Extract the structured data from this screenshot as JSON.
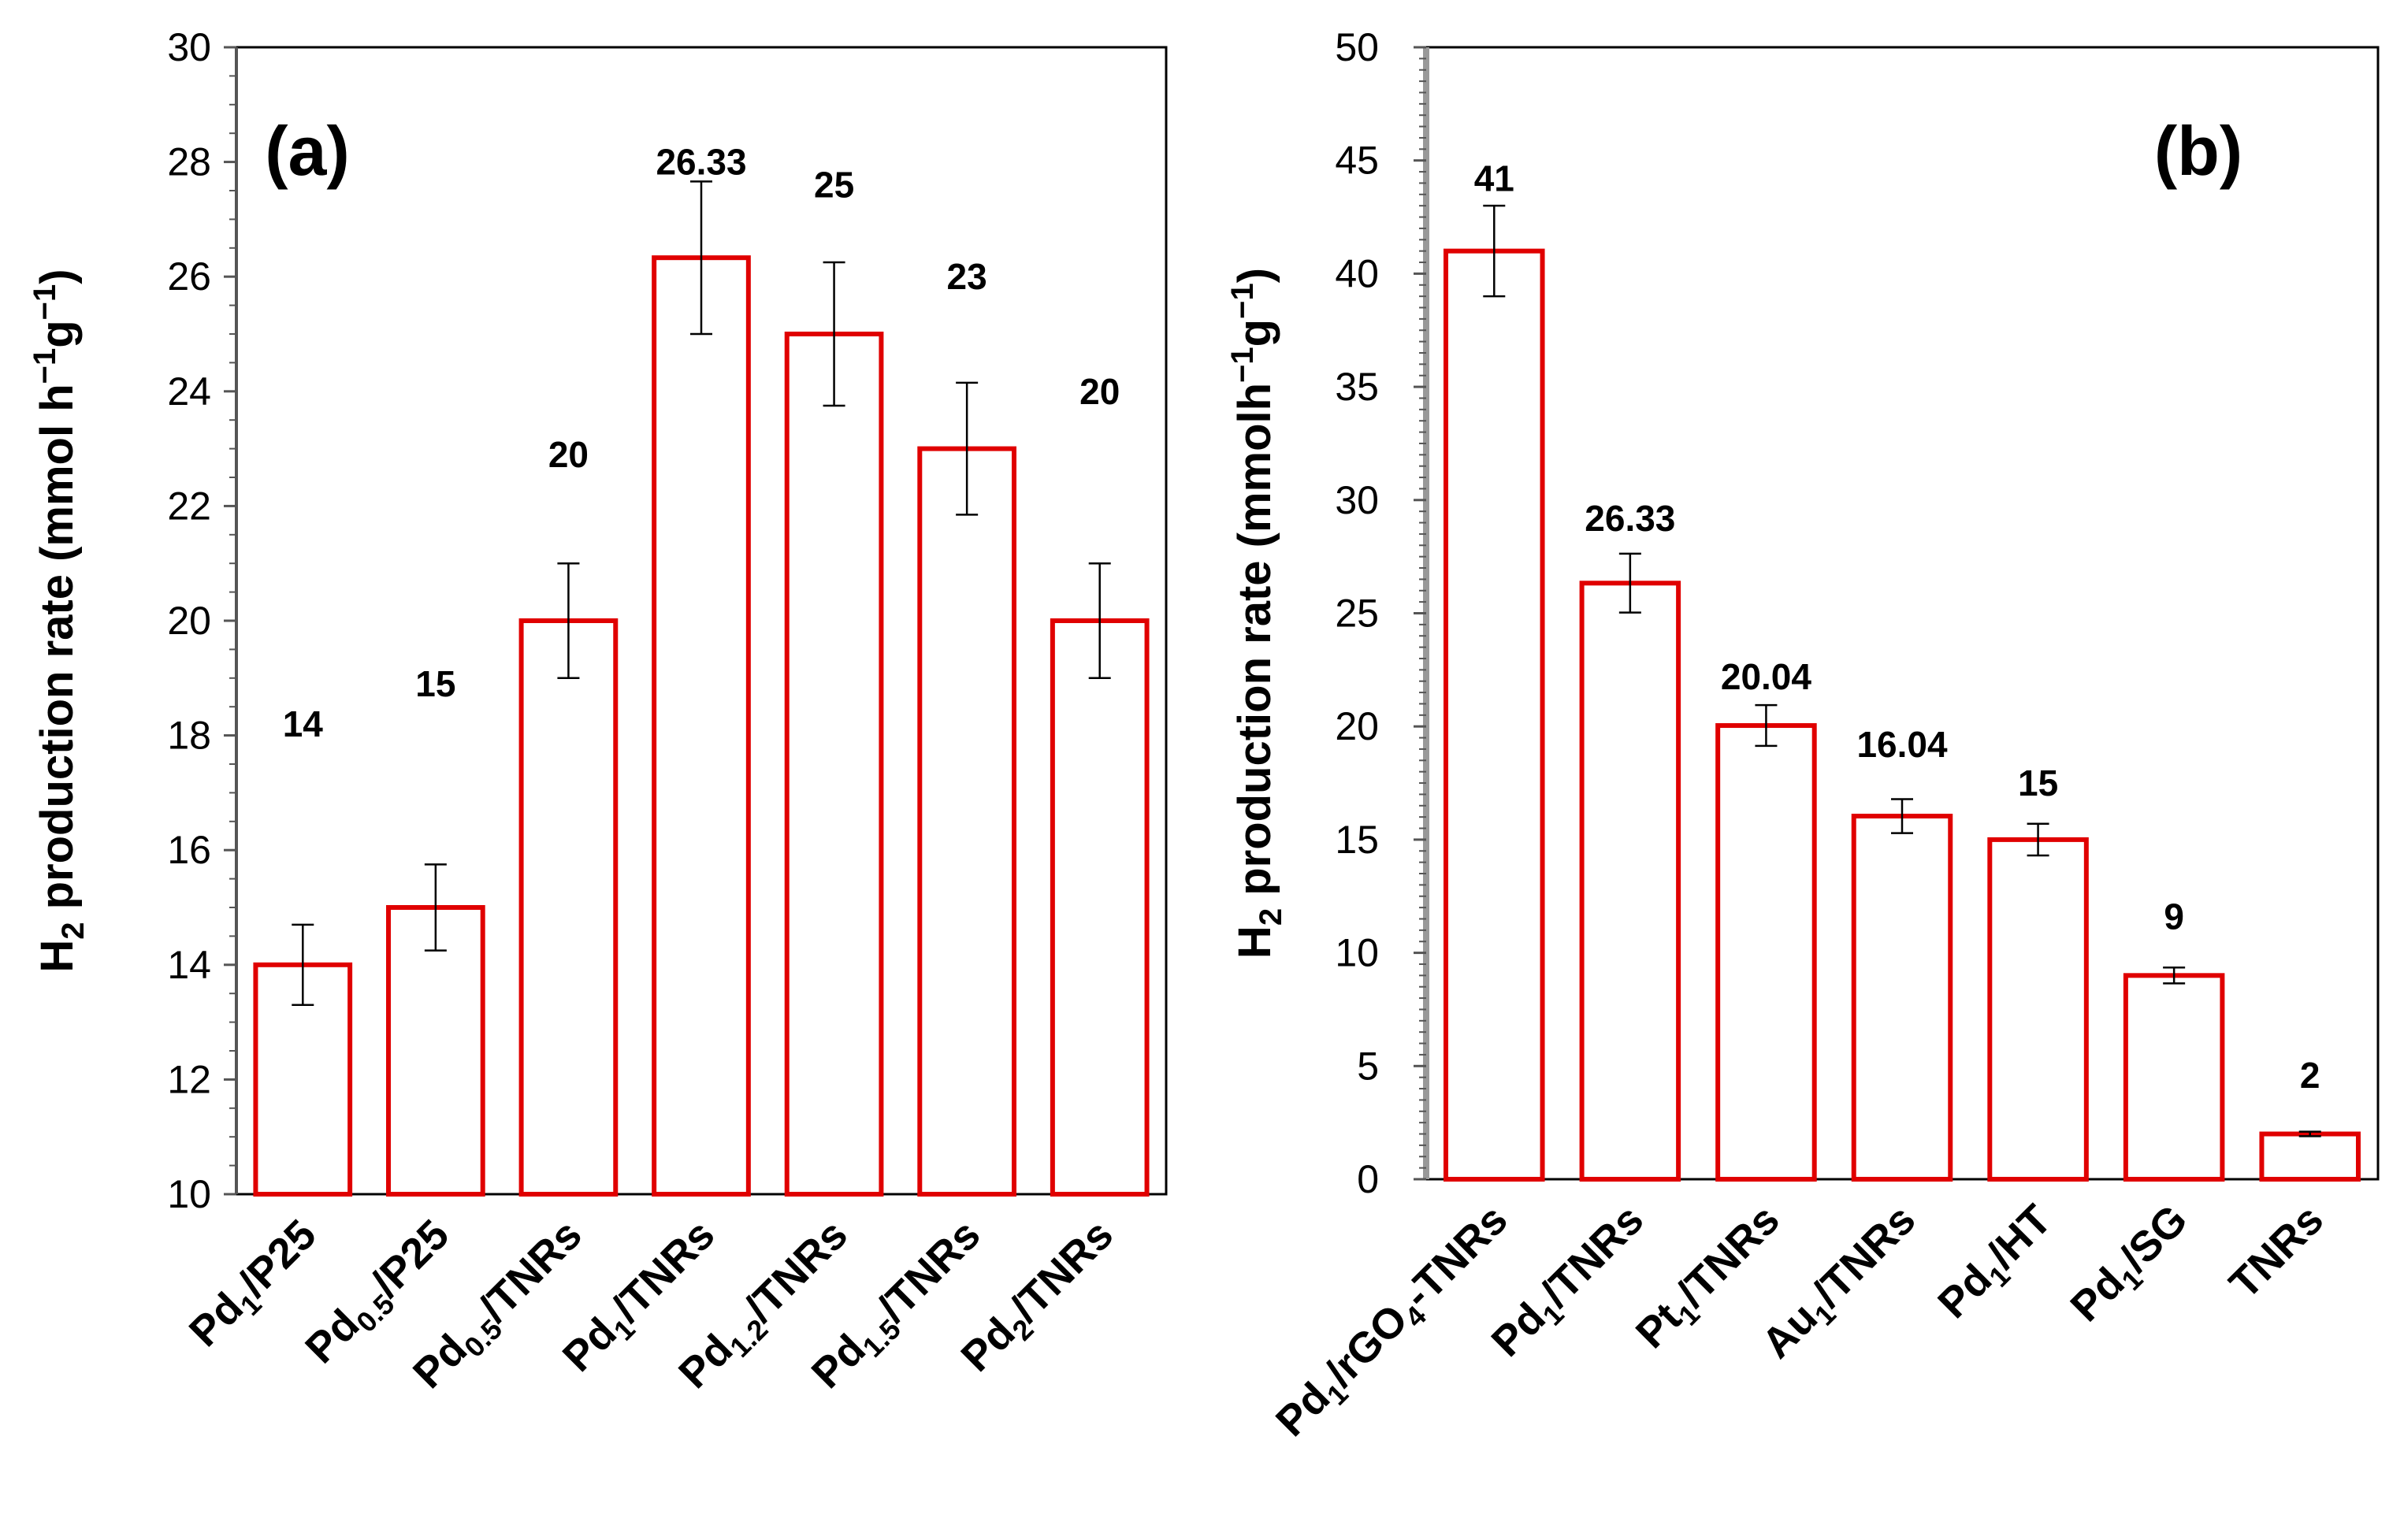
{
  "chart_data": [
    {
      "type": "bar",
      "panel_label": "(a)",
      "ylabel": "H2 production rate (mmol h-1g-1)",
      "ylabel_parts": {
        "main": "H",
        "sub": "2",
        "rest": " production rate (mmol h",
        "sup1": "−1",
        "mid": "g",
        "sup2": "−1",
        "end": ")"
      },
      "ylim": [
        10,
        30
      ],
      "ytick_step": 2,
      "categories": [
        {
          "text": "Pd1/P25",
          "parts": [
            [
              "Pd",
              ""
            ],
            [
              "1",
              "sub"
            ],
            [
              "/P25",
              ""
            ]
          ]
        },
        {
          "text": "Pd0.5/P25",
          "parts": [
            [
              "Pd",
              ""
            ],
            [
              "0.5",
              "sub"
            ],
            [
              "/P25",
              ""
            ]
          ]
        },
        {
          "text": "Pd0.5/TNRs",
          "parts": [
            [
              "Pd",
              ""
            ],
            [
              "0.5",
              "sub"
            ],
            [
              "/TNRs",
              ""
            ]
          ]
        },
        {
          "text": "Pd1/TNRs",
          "parts": [
            [
              "Pd",
              ""
            ],
            [
              "1",
              "sub"
            ],
            [
              "/TNRs",
              ""
            ]
          ]
        },
        {
          "text": "Pd1.2/TNRs",
          "parts": [
            [
              "Pd",
              ""
            ],
            [
              "1.2",
              "sub"
            ],
            [
              "/TNRs",
              ""
            ]
          ]
        },
        {
          "text": "Pd1.5/TNRs",
          "parts": [
            [
              "Pd",
              ""
            ],
            [
              "1.5",
              "sub"
            ],
            [
              "/TNRs",
              ""
            ]
          ]
        },
        {
          "text": "Pd2/TNRs",
          "parts": [
            [
              "Pd",
              ""
            ],
            [
              "2",
              "sub"
            ],
            [
              "/TNRs",
              ""
            ]
          ]
        }
      ],
      "values": [
        14,
        15,
        20,
        26.33,
        25,
        23,
        20
      ],
      "errors": [
        0.7,
        0.75,
        1.0,
        1.33,
        1.25,
        1.15,
        1.0
      ],
      "data_labels": [
        "14",
        "15",
        "20",
        "26.33",
        "25",
        "23",
        "20"
      ],
      "label_values": [
        18.2,
        18.9,
        22.9,
        28.0,
        27.6,
        26.0,
        24.0
      ],
      "bar_color": "#e00000"
    },
    {
      "type": "bar",
      "panel_label": "(b)",
      "ylabel": "H2 production rate (mmolh-1g-1)",
      "ylabel_parts": {
        "main": "H",
        "sub": "2",
        "rest": " production rate (mmolh",
        "sup1": "−1",
        "mid": "g",
        "sup2": "−1",
        "end": ")"
      },
      "ylim": [
        0,
        50
      ],
      "ytick_step": 5,
      "categories": [
        {
          "text": "Pd1/rGO4-TNRs",
          "parts": [
            [
              "Pd",
              ""
            ],
            [
              "1",
              "sub"
            ],
            [
              "/rGO",
              ""
            ],
            [
              "4",
              "sub"
            ],
            [
              "-TNRs",
              ""
            ]
          ]
        },
        {
          "text": "Pd1/TNRs",
          "parts": [
            [
              "Pd",
              ""
            ],
            [
              "1",
              "sub"
            ],
            [
              "/TNRs",
              ""
            ]
          ]
        },
        {
          "text": "Pt1/TNRs",
          "parts": [
            [
              "Pt",
              ""
            ],
            [
              "1",
              "sub"
            ],
            [
              "/TNRs",
              ""
            ]
          ]
        },
        {
          "text": "Au1/TNRs",
          "parts": [
            [
              "Au",
              ""
            ],
            [
              "1",
              "sub"
            ],
            [
              "/TNRs",
              ""
            ]
          ]
        },
        {
          "text": "Pd1/HT",
          "parts": [
            [
              "Pd",
              ""
            ],
            [
              "1",
              "sub"
            ],
            [
              "/HT",
              ""
            ]
          ]
        },
        {
          "text": "Pd1/SG",
          "parts": [
            [
              "Pd",
              ""
            ],
            [
              "1",
              "sub"
            ],
            [
              "/SG",
              ""
            ]
          ]
        },
        {
          "text": "TNRs",
          "parts": [
            [
              "TNRs",
              ""
            ]
          ]
        }
      ],
      "values": [
        41,
        26.33,
        20.04,
        16.04,
        15,
        9,
        2
      ],
      "errors": [
        2.0,
        1.3,
        0.9,
        0.75,
        0.7,
        0.35,
        0.1
      ],
      "data_labels": [
        "41",
        "26.33",
        "20.04",
        "16.04",
        "15",
        "9",
        "2"
      ],
      "label_values": [
        44.2,
        29.2,
        22.2,
        19.2,
        17.5,
        11.6,
        4.6
      ],
      "bar_color": "#e00000"
    }
  ]
}
